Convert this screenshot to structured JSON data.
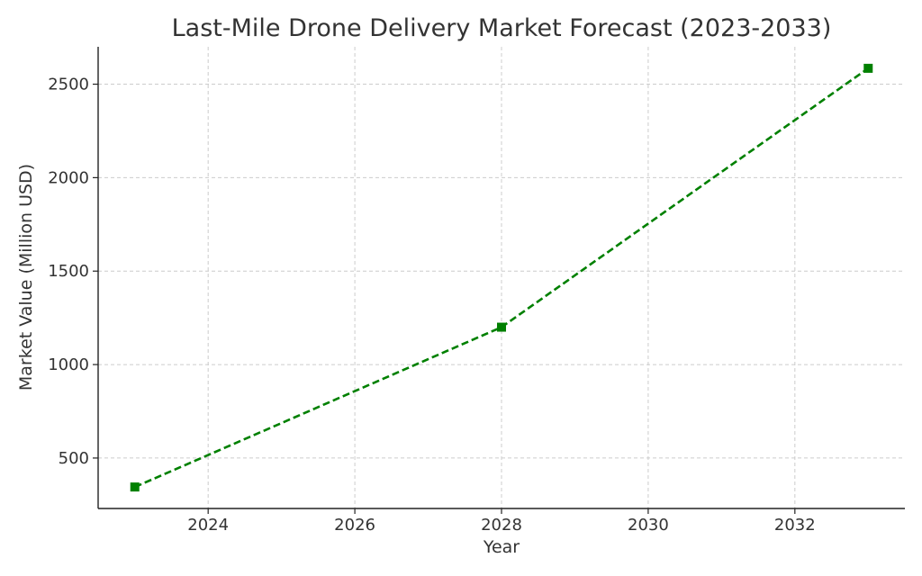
{
  "chart_data": {
    "type": "line",
    "title": "Last-Mile Drone Delivery Market Forecast (2023-2033)",
    "xlabel": "Year",
    "ylabel": "Market Value (Million USD)",
    "xlim": [
      2022.5,
      2033.5
    ],
    "ylim": [
      230,
      2700
    ],
    "xticks": [
      2024,
      2026,
      2028,
      2030,
      2032
    ],
    "yticks": [
      500,
      1000,
      1500,
      2000,
      2500
    ],
    "grid": true,
    "x": [
      2023,
      2028,
      2033
    ],
    "series": [
      {
        "values": [
          345,
          1200,
          2585
        ],
        "color": "#008000",
        "line_style": "dashed",
        "marker": "square"
      }
    ]
  }
}
